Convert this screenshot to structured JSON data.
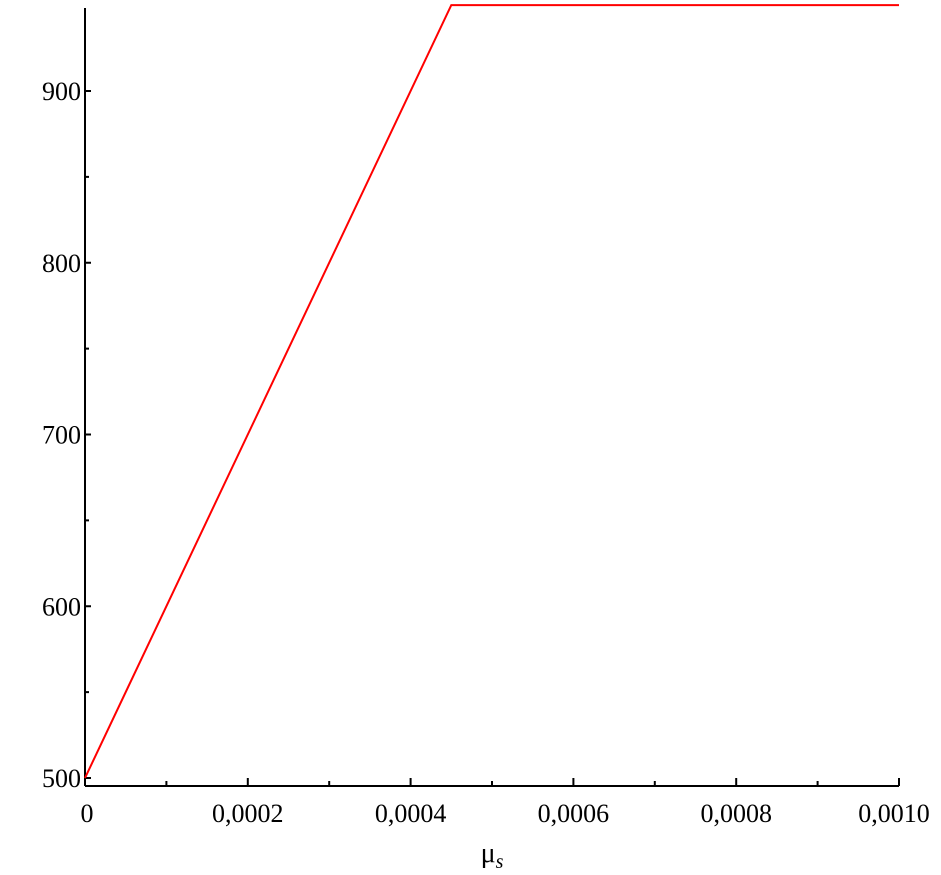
{
  "chart_data": {
    "type": "line",
    "xlabel": {
      "symbol": "μ",
      "subscript": "s"
    },
    "ylabel": "",
    "xlim": [
      0,
      0.001
    ],
    "ylim": [
      500,
      950
    ],
    "x_ticks": [
      {
        "value": 0,
        "label": "0"
      },
      {
        "value": 0.0002,
        "label": "0,0002"
      },
      {
        "value": 0.0004,
        "label": "0,0004"
      },
      {
        "value": 0.0006,
        "label": "0,0006"
      },
      {
        "value": 0.0008,
        "label": "0,0008"
      },
      {
        "value": 0.001,
        "label": "0,0010"
      }
    ],
    "x_minor_ticks": [
      0.0001,
      0.0003,
      0.0005,
      0.0007,
      0.0009
    ],
    "y_ticks": [
      {
        "value": 500,
        "label": "500"
      },
      {
        "value": 600,
        "label": "600"
      },
      {
        "value": 700,
        "label": "700"
      },
      {
        "value": 800,
        "label": "800"
      },
      {
        "value": 900,
        "label": "900"
      }
    ],
    "y_minor_ticks": [
      550,
      650,
      750,
      850
    ],
    "grid": false,
    "series": [
      {
        "color": "#ff0000",
        "points": [
          {
            "x": 0,
            "y": 500
          },
          {
            "x": 0.00045,
            "y": 950
          },
          {
            "x": 0.001,
            "y": 950
          }
        ]
      }
    ]
  }
}
